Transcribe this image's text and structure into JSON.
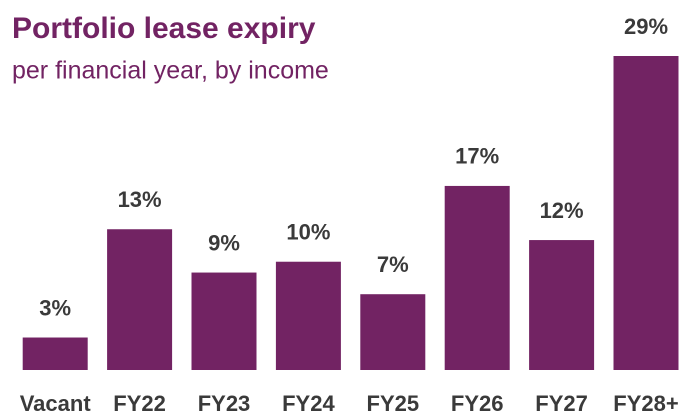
{
  "chart_data": {
    "type": "bar",
    "title": "Portfolio lease expiry",
    "subtitle": "per financial year, by income",
    "categories": [
      "Vacant",
      "FY22",
      "FY23",
      "FY24",
      "FY25",
      "FY26",
      "FY27",
      "FY28+"
    ],
    "values": [
      3,
      13,
      9,
      10,
      7,
      17,
      12,
      29
    ],
    "value_labels": [
      "3%",
      "13%",
      "9%",
      "10%",
      "7%",
      "17%",
      "12%",
      "29%"
    ],
    "color": "#722363"
  }
}
